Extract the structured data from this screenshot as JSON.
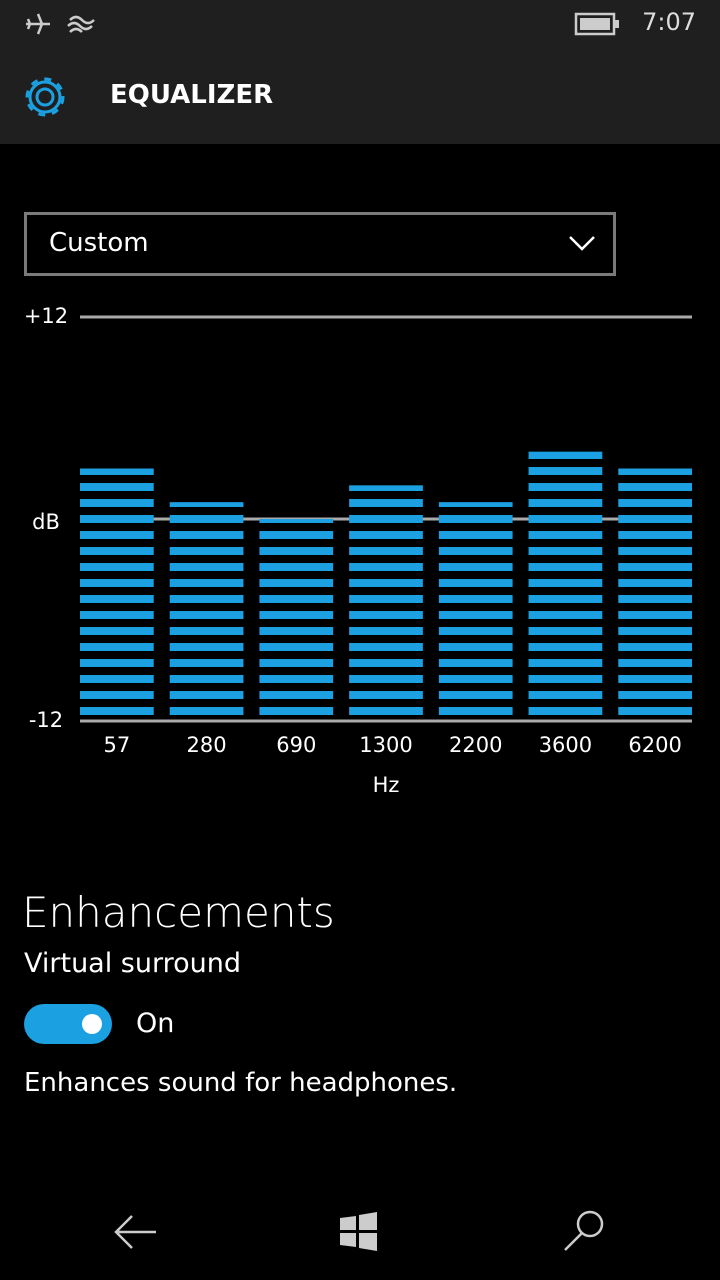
{
  "status_bar": {
    "time": "7:07"
  },
  "header": {
    "title": "EQUALIZER"
  },
  "preset": {
    "selected": "Custom"
  },
  "chart_data": {
    "type": "bar",
    "categories": [
      "57",
      "280",
      "690",
      "1300",
      "2200",
      "3600",
      "6200"
    ],
    "values": [
      3,
      1,
      0,
      2,
      1,
      4,
      3
    ],
    "color": "#1ba1e2",
    "x_label": "Hz",
    "y_label": "dB",
    "ylim": [
      -12,
      12
    ],
    "yticks": [
      {
        "value": 12,
        "label": "+12"
      },
      -12
    ],
    "grid": true
  },
  "enhancements": {
    "title": "Enhancements",
    "setting": "Virtual surround",
    "toggle": {
      "on": true,
      "label": "On"
    },
    "description": "Enhances sound for headphones."
  }
}
